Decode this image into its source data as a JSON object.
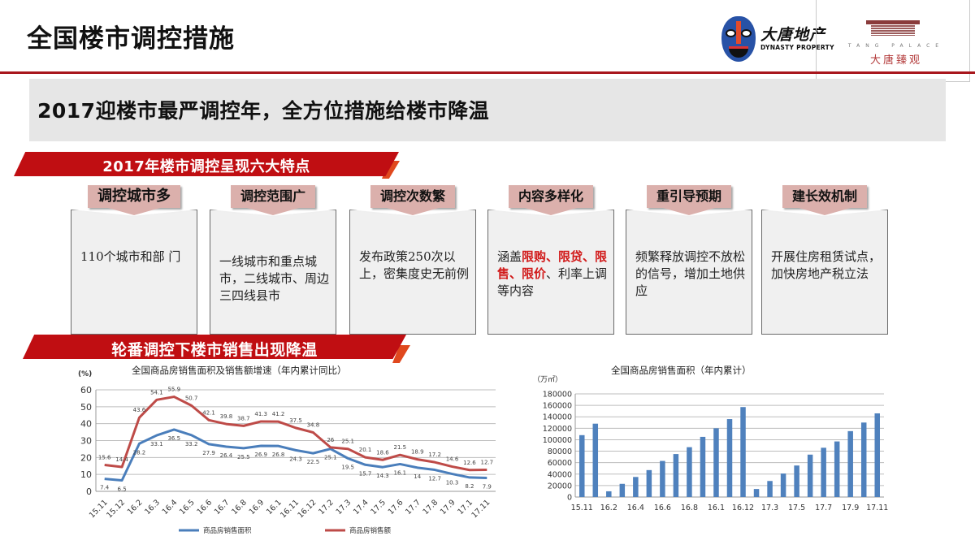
{
  "header": {
    "title": "全国楼市调控措施",
    "logo_dynasty_cn": "大唐地产",
    "logo_dynasty_en": "DYNASTY PROPERTY",
    "logo_palace_en": "TANG PALACE",
    "logo_palace_cn": "大唐臻观"
  },
  "headline": "2017迎楼市最严调控年，全方位措施给楼市降温",
  "section1": {
    "ribbon": "2017年楼市调控呈现六大特点",
    "features": [
      {
        "tag": "调控城市多",
        "desc": "110个城市和部 门"
      },
      {
        "tag": "调控范围广",
        "desc": "一线城市和重点城市，二线城市、周边三四线县市"
      },
      {
        "tag": "调控次数繁",
        "desc": "发布政策250次以上，密集度史无前例"
      },
      {
        "tag": "内容多样化",
        "desc_prefix": "涵盖",
        "desc_highlight": "限购、限贷、限售、限价",
        "desc_suffix": "、利率上调等内容"
      },
      {
        "tag": "重引导预期",
        "desc": "频繁释放调控不放松的信号，增加土地供应"
      },
      {
        "tag": "建长效机制",
        "desc": "开展住房租赁试点，加快房地产税立法"
      }
    ]
  },
  "section2": {
    "ribbon": "轮番调控下楼市销售出现降温"
  },
  "colors": {
    "brand_red": "#c00e12",
    "area_line": "#4a7ebb",
    "amount_line": "#be4b48",
    "bar": "#4f81bd"
  },
  "chart_data": [
    {
      "type": "line",
      "title": "全国商品房销售面积及销售额增速（年内累计同比）",
      "ylabel": "(%)",
      "xlabel": "",
      "ylim": [
        0,
        60
      ],
      "yticks": [
        0,
        10,
        20,
        30,
        40,
        50,
        60
      ],
      "grid": true,
      "legend_position": "bottom",
      "categories": [
        "15.11",
        "15.12",
        "16.2",
        "16.3",
        "16.4",
        "16.5",
        "16.6",
        "16.7",
        "16.8",
        "16.9",
        "16.1",
        "16.11",
        "16.12",
        "17.2",
        "17.3",
        "17.4",
        "17.5",
        "17.6",
        "17.7",
        "17.8",
        "17.9",
        "17.1",
        "17.11"
      ],
      "series": [
        {
          "name": "商品房销售面积",
          "color": "#4a7ebb",
          "values": [
            7.4,
            6.5,
            28.2,
            33.1,
            36.5,
            33.2,
            27.9,
            26.4,
            25.5,
            26.9,
            26.8,
            24.3,
            22.5,
            25.1,
            19.5,
            15.7,
            14.3,
            16.1,
            14,
            12.7,
            10.3,
            8.2,
            7.9
          ]
        },
        {
          "name": "商品房销售额",
          "color": "#be4b48",
          "values": [
            15.6,
            14.4,
            43.6,
            54.1,
            55.9,
            50.7,
            42.1,
            39.8,
            38.7,
            41.3,
            41.2,
            37.5,
            34.8,
            26,
            25.1,
            20.1,
            18.6,
            21.5,
            18.9,
            17.2,
            14.6,
            12.6,
            12.7
          ]
        }
      ]
    },
    {
      "type": "bar",
      "title": "全国商品房销售面积（年内累计）",
      "ylabel": "（万㎡）",
      "xlabel": "",
      "ylim": [
        0,
        180000
      ],
      "yticks": [
        0,
        20000,
        40000,
        60000,
        80000,
        100000,
        120000,
        140000,
        160000,
        180000
      ],
      "grid": true,
      "categories": [
        "15.11",
        "15.12",
        "16.2",
        "16.3",
        "16.4",
        "16.5",
        "16.6",
        "16.7",
        "16.8",
        "16.9",
        "16.1",
        "16.11",
        "16.12",
        "17.2",
        "17.3",
        "17.4",
        "17.5",
        "17.6",
        "17.7",
        "17.8",
        "17.9",
        "17.1",
        "17.11"
      ],
      "xtick_labels_shown": [
        "15.11",
        "16.2",
        "16.4",
        "16.6",
        "16.8",
        "16.1",
        "16.12",
        "17.3",
        "17.5",
        "17.7",
        "17.9",
        "17.11"
      ],
      "values": [
        108000,
        128000,
        10000,
        23000,
        35000,
        47000,
        63000,
        75000,
        87000,
        105000,
        120000,
        136000,
        157000,
        14000,
        28000,
        41000,
        55000,
        74000,
        86000,
        97000,
        115000,
        130000,
        146000
      ]
    }
  ]
}
